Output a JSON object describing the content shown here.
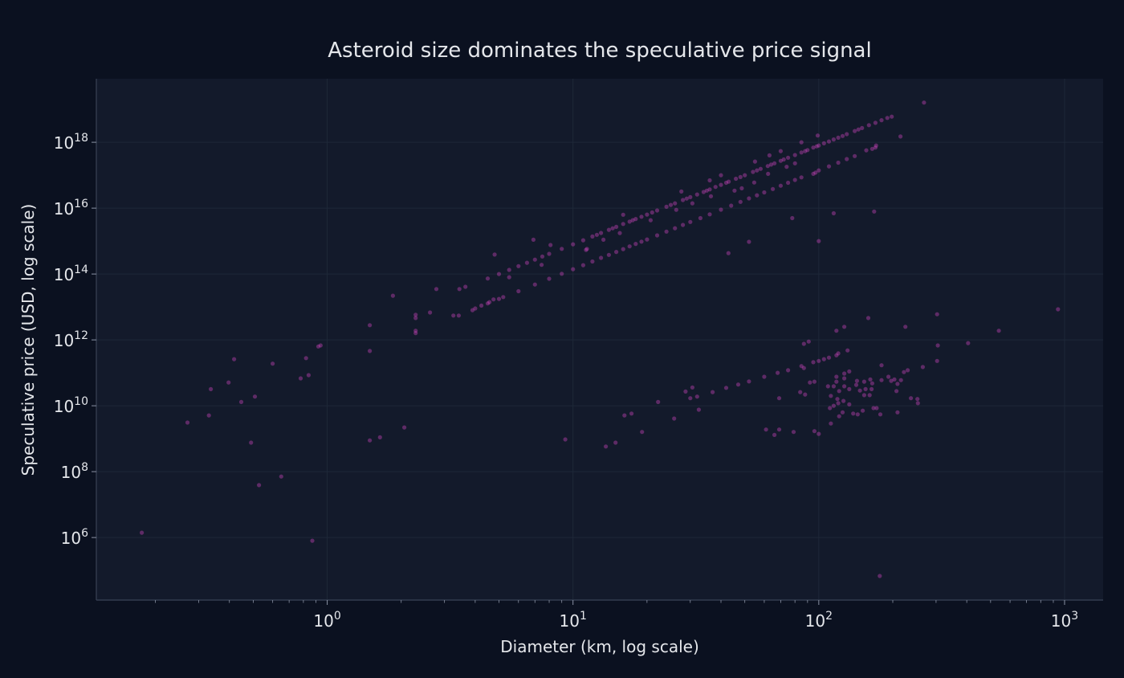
{
  "chart_data": {
    "type": "scatter",
    "title": "Asteroid size dominates the speculative price signal",
    "xlabel": "Diameter (km, log scale)",
    "ylabel": "Speculative price (USD, log scale)",
    "xscale": "log",
    "yscale": "log",
    "xlim": [
      0.115,
      1435
    ],
    "ylim": [
      12600,
      8.5e+19
    ],
    "grid": true,
    "legend": "none",
    "x_ticks": [
      {
        "value": 1,
        "base": "10",
        "exp": "0"
      },
      {
        "value": 10,
        "base": "10",
        "exp": "1"
      },
      {
        "value": 100,
        "base": "10",
        "exp": "2"
      },
      {
        "value": 1000,
        "base": "10",
        "exp": "3"
      }
    ],
    "y_ticks": [
      {
        "value": 1000000.0,
        "base": "10",
        "exp": "6"
      },
      {
        "value": 100000000.0,
        "base": "10",
        "exp": "8"
      },
      {
        "value": 10000000000.0,
        "base": "10",
        "exp": "10"
      },
      {
        "value": 1000000000000.0,
        "base": "10",
        "exp": "12"
      },
      {
        "value": 100000000000000.0,
        "base": "10",
        "exp": "14"
      },
      {
        "value": 1e+16,
        "base": "10",
        "exp": "16"
      },
      {
        "value": 1e+18,
        "base": "10",
        "exp": "18"
      }
    ],
    "colors": {
      "page_background": "#0b1120",
      "plot_background": "#131a2b",
      "grid": "#1e2838",
      "point": "#d946c8",
      "text": "#e5e7eb"
    },
    "points": [
      [
        4.5,
        73000000000000.0
      ],
      [
        5,
        100000000000000.0
      ],
      [
        5.5,
        133000000000000.0
      ],
      [
        6,
        173000000000000.0
      ],
      [
        6.5,
        220000000000000.0
      ],
      [
        7,
        274000000000000.0
      ],
      [
        7.5,
        340000000000000.0
      ],
      [
        8,
        410000000000000.0
      ],
      [
        9,
        580000000000000.0
      ],
      [
        10,
        800000000000000.0
      ],
      [
        11,
        1060000000000000.0
      ],
      [
        12,
        1380000000000000.0
      ],
      [
        13,
        1760000000000000.0
      ],
      [
        14,
        2200000000000000.0
      ],
      [
        15,
        2700000000000000.0
      ],
      [
        16,
        3300000000000000.0
      ],
      [
        17,
        3900000000000000.0
      ],
      [
        18,
        4700000000000000.0
      ],
      [
        19,
        5500000000000000.0
      ],
      [
        20,
        6400000000000000.0
      ],
      [
        22,
        8500000000000000.0
      ],
      [
        24,
        1.1e+16
      ],
      [
        26,
        1.4e+16
      ],
      [
        28,
        1.76e+16
      ],
      [
        30,
        2.16e+16
      ],
      [
        32,
        2.6e+16
      ],
      [
        34,
        3.1e+16
      ],
      [
        36,
        3.7e+16
      ],
      [
        38,
        4.4e+16
      ],
      [
        40,
        5.1e+16
      ],
      [
        43,
        6.4e+16
      ],
      [
        46,
        7.8e+16
      ],
      [
        50,
        1e+17
      ],
      [
        54,
        1.26e+17
      ],
      [
        58,
        1.56e+17
      ],
      [
        62,
        1.9e+17
      ],
      [
        66,
        2.3e+17
      ],
      [
        70,
        2.74e+17
      ],
      [
        75,
        3.4e+17
      ],
      [
        80,
        4.1e+17
      ],
      [
        85,
        4.9e+17
      ],
      [
        90,
        5.8e+17
      ],
      [
        95,
        6.9e+17
      ],
      [
        100,
        8e+17
      ],
      [
        105,
        9.3e+17
      ],
      [
        110,
        1.06e+18
      ],
      [
        115,
        1.22e+18
      ],
      [
        120,
        1.38e+18
      ],
      [
        130,
        1.76e+18
      ],
      [
        140,
        2.2e+18
      ],
      [
        150,
        2.7e+18
      ],
      [
        160,
        3.3e+18
      ],
      [
        170,
        3.9e+18
      ],
      [
        180,
        4.7e+18
      ],
      [
        190,
        5.5e+18
      ],
      [
        198,
        6e+18
      ],
      [
        12.5,
        1550000000000000.0
      ],
      [
        14.5,
        2450000000000000.0
      ],
      [
        17.5,
        4300000000000000.0
      ],
      [
        21,
        7400000000000000.0
      ],
      [
        25,
        1.25e+16
      ],
      [
        29,
        1.95e+16
      ],
      [
        35,
        3.4e+16
      ],
      [
        42,
        5.9e+16
      ],
      [
        48,
        8.8e+16
      ],
      [
        56,
        1.4e+17
      ],
      [
        64,
        2.1e+17
      ],
      [
        72,
        3e+17
      ],
      [
        88,
        5.4e+17
      ],
      [
        98,
        7.5e+17
      ],
      [
        125,
        1.55e+18
      ],
      [
        145,
        2.45e+18
      ],
      [
        4,
        9000000000000.0
      ],
      [
        4.5,
        12800000000000.0
      ],
      [
        5,
        17500000000000.0
      ],
      [
        6,
        30000000000000.0
      ],
      [
        7,
        48000000000000.0
      ],
      [
        8,
        72000000000000.0
      ],
      [
        9,
        102000000000000.0
      ],
      [
        10,
        140000000000000.0
      ],
      [
        11,
        186000000000000.0
      ],
      [
        12,
        240000000000000.0
      ],
      [
        13,
        310000000000000.0
      ],
      [
        14,
        380000000000000.0
      ],
      [
        15,
        470000000000000.0
      ],
      [
        16,
        570000000000000.0
      ],
      [
        17,
        690000000000000.0
      ],
      [
        18,
        820000000000000.0
      ],
      [
        19,
        960000000000000.0
      ],
      [
        20,
        1120000000000000.0
      ],
      [
        22,
        1490000000000000.0
      ],
      [
        24,
        1940000000000000.0
      ],
      [
        26,
        2460000000000000.0
      ],
      [
        28,
        3100000000000000.0
      ],
      [
        30,
        3800000000000000.0
      ],
      [
        33,
        5000000000000000.0
      ],
      [
        36,
        6500000000000000.0
      ],
      [
        40,
        9000000000000000.0
      ],
      [
        44,
        1.19e+16
      ],
      [
        48,
        1.55e+16
      ],
      [
        52,
        1.97e+16
      ],
      [
        56,
        2.46e+16
      ],
      [
        60,
        3e+16
      ],
      [
        65,
        3.8e+16
      ],
      [
        70,
        4.8e+16
      ],
      [
        75,
        5.9e+16
      ],
      [
        80,
        7.2e+16
      ],
      [
        85,
        8.6e+16
      ],
      [
        95,
        1.1e+17
      ],
      [
        97,
        1.2e+17
      ],
      [
        100,
        1.4e+17
      ],
      [
        110,
        1.86e+17
      ],
      [
        120,
        2.4e+17
      ],
      [
        130,
        3.1e+17
      ],
      [
        140,
        3.8e+17
      ],
      [
        165,
        6.3e+17
      ],
      [
        170,
        6.9e+17
      ],
      [
        99,
        1.6e+18
      ],
      [
        85,
        1e+18
      ],
      [
        215,
        1.5e+18
      ],
      [
        268,
        1.6e+19
      ],
      [
        156,
        5.7e+17
      ],
      [
        171,
        8e+17
      ],
      [
        16.0,
        6300000000000000.0
      ],
      [
        27.6,
        3.2e+16
      ],
      [
        36,
        7e+16
      ],
      [
        40,
        1e+17
      ],
      [
        55,
        2.6e+17
      ],
      [
        63,
        4e+17
      ],
      [
        70,
        5.4e+17
      ],
      [
        13.3,
        1100000000000000.0
      ],
      [
        15.5,
        1750000000000000.0
      ],
      [
        20.7,
        4300000000000000.0
      ],
      [
        26.3,
        8900000000000000.0
      ],
      [
        30.6,
        1.4e+16
      ],
      [
        36.4,
        2.3e+16
      ],
      [
        45.4,
        3.4e+16
      ],
      [
        48.6,
        4e+16
      ],
      [
        54.6,
        6e+16
      ],
      [
        62.2,
        1.1e+17
      ],
      [
        74,
        1.8e+17
      ],
      [
        80,
        2.3e+17
      ],
      [
        11.3,
        540000000000000.0
      ],
      [
        7.45,
        190000000000000.0
      ],
      [
        5.5,
        80000000000000.0
      ],
      [
        4.8,
        390000000000000.0
      ],
      [
        6.9,
        1100000000000000.0
      ],
      [
        8.1,
        760000000000000.0
      ],
      [
        11.4,
        580000000000000.0
      ],
      [
        42.9,
        430000000000000.0
      ],
      [
        52,
        950000000000000.0
      ],
      [
        78,
        5000000000000000.0
      ],
      [
        100,
        1000000000000000.0
      ],
      [
        115,
        7000000000000000.0
      ],
      [
        168,
        7900000000000000.0
      ],
      [
        0.176,
        1400000.0
      ],
      [
        0.27,
        3100000000.0
      ],
      [
        0.33,
        5100000000.0
      ],
      [
        0.336,
        32000000000.0
      ],
      [
        0.397,
        51000000000.0
      ],
      [
        0.418,
        260000000000.0
      ],
      [
        0.447,
        13000000000.0
      ],
      [
        0.49,
        760000000.0
      ],
      [
        0.508,
        19000000000.0
      ],
      [
        0.528,
        39000000.0
      ],
      [
        0.6,
        190000000000.0
      ],
      [
        0.65,
        71000000.0
      ],
      [
        0.78,
        68000000000.0
      ],
      [
        0.82,
        280000000000.0
      ],
      [
        0.84,
        85000000000.0
      ],
      [
        0.87,
        800000.0
      ],
      [
        0.92,
        630000000000.0
      ],
      [
        0.94,
        680000000000.0
      ],
      [
        1.49,
        2800000000000.0
      ],
      [
        1.49,
        460000000000.0
      ],
      [
        1.49,
        890000000.0
      ],
      [
        1.64,
        1100000000.0
      ],
      [
        1.85,
        22000000000000.0
      ],
      [
        2.06,
        2200000000.0
      ],
      [
        2.29,
        5800000000000.0
      ],
      [
        2.29,
        4600000000000.0
      ],
      [
        2.29,
        1900000000000.0
      ],
      [
        2.29,
        1600000000000.0
      ],
      [
        2.62,
        6800000000000.0
      ],
      [
        2.78,
        35000000000000.0
      ],
      [
        3.26,
        5500000000000.0
      ],
      [
        3.43,
        5500000000000.0
      ],
      [
        3.45,
        35000000000000.0
      ],
      [
        3.65,
        41000000000000.0
      ],
      [
        3.9,
        8000000000000.0
      ],
      [
        4.24,
        11000000000000.0
      ],
      [
        4.57,
        14000000000000.0
      ],
      [
        4.75,
        17000000000000.0
      ],
      [
        5.2,
        20000000000000.0
      ],
      [
        9.3,
        950000000.0
      ],
      [
        13.6,
        580000000.0
      ],
      [
        14.9,
        760000000.0
      ],
      [
        16.2,
        5100000000.0
      ],
      [
        17.3,
        5800000000.0
      ],
      [
        19.1,
        1600000000.0
      ],
      [
        22.2,
        13000000000.0
      ],
      [
        25.8,
        4100000000.0
      ],
      [
        28.7,
        27000000000.0
      ],
      [
        30.6,
        36000000000.0
      ],
      [
        32.5,
        7600000000.0
      ],
      [
        30,
        17000000000.0
      ],
      [
        32,
        19000000000.0
      ],
      [
        37,
        26000000000.0
      ],
      [
        42,
        35000000000.0
      ],
      [
        47,
        44000000000.0
      ],
      [
        52,
        55000000000.0
      ],
      [
        60,
        76000000000.0
      ],
      [
        68,
        100000000000.0
      ],
      [
        75,
        120000000000.0
      ],
      [
        85,
        160000000000.0
      ],
      [
        95,
        210000000000.0
      ],
      [
        100,
        230000000000.0
      ],
      [
        105,
        260000000000.0
      ],
      [
        110,
        290000000000.0
      ],
      [
        118,
        340000000000.0
      ],
      [
        120,
        390000000000.0
      ],
      [
        303,
        6000000000000.0
      ],
      [
        159,
        4600000000000.0
      ],
      [
        940,
        8500000000000.0
      ],
      [
        118,
        1900000000000.0
      ],
      [
        127,
        2500000000000.0
      ],
      [
        225,
        2500000000000.0
      ],
      [
        540,
        1900000000000.0
      ],
      [
        87,
        760000000000.0
      ],
      [
        91,
        890000000000.0
      ],
      [
        131,
        480000000000.0
      ],
      [
        305,
        680000000000.0
      ],
      [
        405,
        800000000000.0
      ],
      [
        303,
        230000000000.0
      ],
      [
        180,
        170000000000.0
      ],
      [
        222,
        105000000000.0
      ],
      [
        230,
        120000000000.0
      ],
      [
        265,
        150000000000.0
      ],
      [
        87,
        140000000000.0
      ],
      [
        92,
        51000000000.0
      ],
      [
        96,
        54000000000.0
      ],
      [
        84,
        26000000000.0
      ],
      [
        88,
        22000000000.0
      ],
      [
        69,
        17000000000.0
      ],
      [
        61,
        1900000000.0
      ],
      [
        66,
        1300000000.0
      ],
      [
        69,
        1900000000.0
      ],
      [
        79,
        1600000000.0
      ],
      [
        96,
        1700000000.0
      ],
      [
        100,
        1400000000.0
      ],
      [
        112,
        2900000000.0
      ],
      [
        118,
        76000000000.0
      ],
      [
        127,
        95000000000.0
      ],
      [
        133,
        110000000000.0
      ],
      [
        127,
        68000000000.0
      ],
      [
        118,
        54000000000.0
      ],
      [
        109,
        39000000000.0
      ],
      [
        115,
        39000000000.0
      ],
      [
        127,
        39000000000.0
      ],
      [
        133,
        32000000000.0
      ],
      [
        121,
        28000000000.0
      ],
      [
        112,
        20000000000.0
      ],
      [
        119,
        16000000000.0
      ],
      [
        126,
        14000000000.0
      ],
      [
        111,
        8500000000.0
      ],
      [
        115,
        10000000000.0
      ],
      [
        120,
        12000000000.0
      ],
      [
        133,
        11000000000.0
      ],
      [
        125,
        6300000000.0
      ],
      [
        121,
        4800000000.0
      ],
      [
        138,
        5800000000.0
      ],
      [
        144,
        5500000000.0
      ],
      [
        151,
        7100000000.0
      ],
      [
        143,
        57000000000.0
      ],
      [
        142,
        43000000000.0
      ],
      [
        147,
        29000000000.0
      ],
      [
        153,
        54000000000.0
      ],
      [
        162,
        63000000000.0
      ],
      [
        165,
        48000000000.0
      ],
      [
        155,
        32000000000.0
      ],
      [
        164,
        32000000000.0
      ],
      [
        153,
        21000000000.0
      ],
      [
        161,
        21000000000.0
      ],
      [
        167,
        8500000000.0
      ],
      [
        172,
        8500000000.0
      ],
      [
        178,
        5500000000.0
      ],
      [
        209,
        6300000000.0
      ],
      [
        180,
        60000000000.0
      ],
      [
        192,
        76000000000.0
      ],
      [
        197,
        57000000000.0
      ],
      [
        203,
        63000000000.0
      ],
      [
        209,
        46000000000.0
      ],
      [
        216,
        60000000000.0
      ],
      [
        207,
        28000000000.0
      ],
      [
        237,
        17000000000.0
      ],
      [
        252,
        16000000000.0
      ],
      [
        253,
        12000000000.0
      ],
      [
        177,
        68000.0
      ]
    ]
  }
}
